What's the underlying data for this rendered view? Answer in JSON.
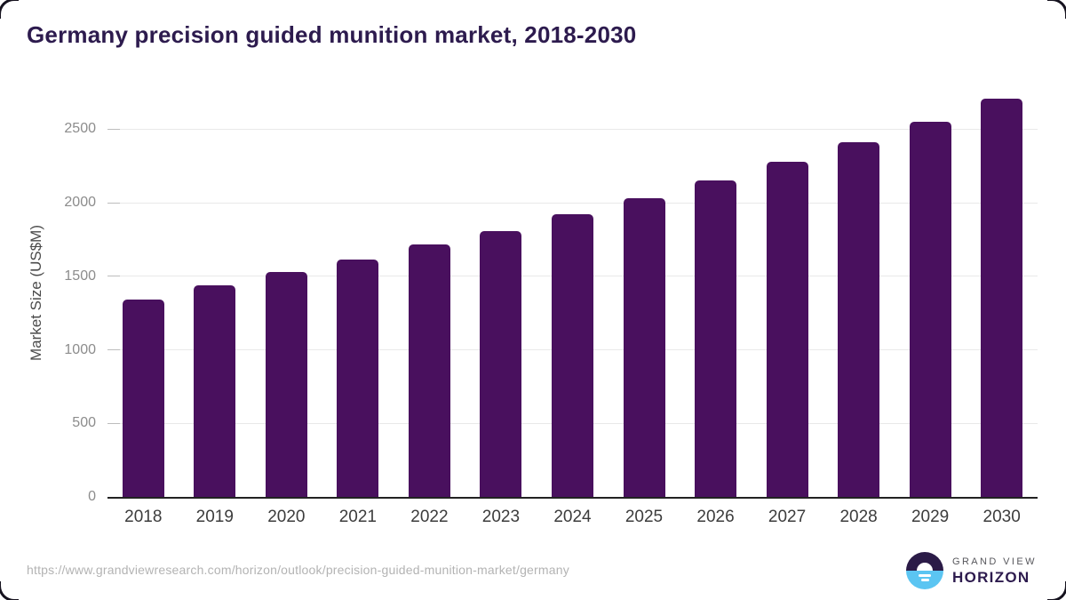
{
  "header": {
    "title": "Germany precision guided munition market, 2018-2030"
  },
  "chart_data": {
    "type": "bar",
    "title": "Germany precision guided munition market, 2018-2030",
    "xlabel": "",
    "ylabel": "Market Size (US$M)",
    "categories": [
      "2018",
      "2019",
      "2020",
      "2021",
      "2022",
      "2023",
      "2024",
      "2025",
      "2026",
      "2027",
      "2028",
      "2029",
      "2030"
    ],
    "values": [
      1345,
      1440,
      1530,
      1615,
      1715,
      1810,
      1920,
      2030,
      2150,
      2280,
      2410,
      2550,
      2710
    ],
    "yticks": [
      0,
      500,
      1000,
      1500,
      2000,
      2500
    ],
    "ylim": [
      0,
      2775
    ],
    "grid": "horizontal-only",
    "legend_position": "none",
    "bar_color": "#49105e"
  },
  "footer": {
    "source_url": "https://www.grandviewresearch.com/horizon/outlook/precision-guided-munition-market/germany",
    "logo": {
      "brand_top": "GRAND VIEW",
      "brand_bottom": "HORIZON"
    }
  },
  "colors": {
    "title_text": "#2d1b4e",
    "bar": "#49105e",
    "axis_line": "#222222",
    "gridline": "#e9e9e9",
    "y_tick_text": "#8c8c8c",
    "x_tick_text": "#3c3c3c",
    "url_text": "#b3b3b3",
    "logo_dark_purple": "#2b1b47",
    "logo_light_blue": "#5bc5f2"
  }
}
